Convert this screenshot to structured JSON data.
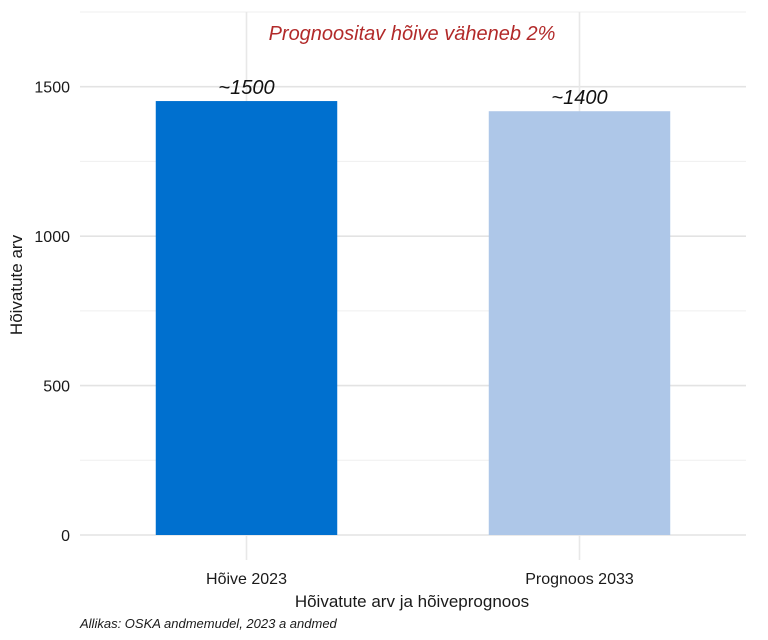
{
  "chart_data": {
    "type": "bar",
    "categories": [
      "Hõive 2023",
      "Prognoos 2033"
    ],
    "values": [
      1452,
      1418
    ],
    "data_labels": [
      "~1500",
      "~1400"
    ],
    "bar_colors": [
      "#0070cf",
      "#aec7e8"
    ],
    "xlabel": "Hõivatute arv ja hõiveprognoos",
    "ylabel": "Hõivatute arv",
    "ylim": [
      0,
      1750
    ],
    "yticks": [
      0,
      500,
      1000,
      1500
    ],
    "grid": true,
    "annotation": "Prognoositav hõive väheneb 2%",
    "annotation_color": "#b22a2a",
    "caption": "Allikas: OSKA andmemudel, 2023 a andmed"
  }
}
